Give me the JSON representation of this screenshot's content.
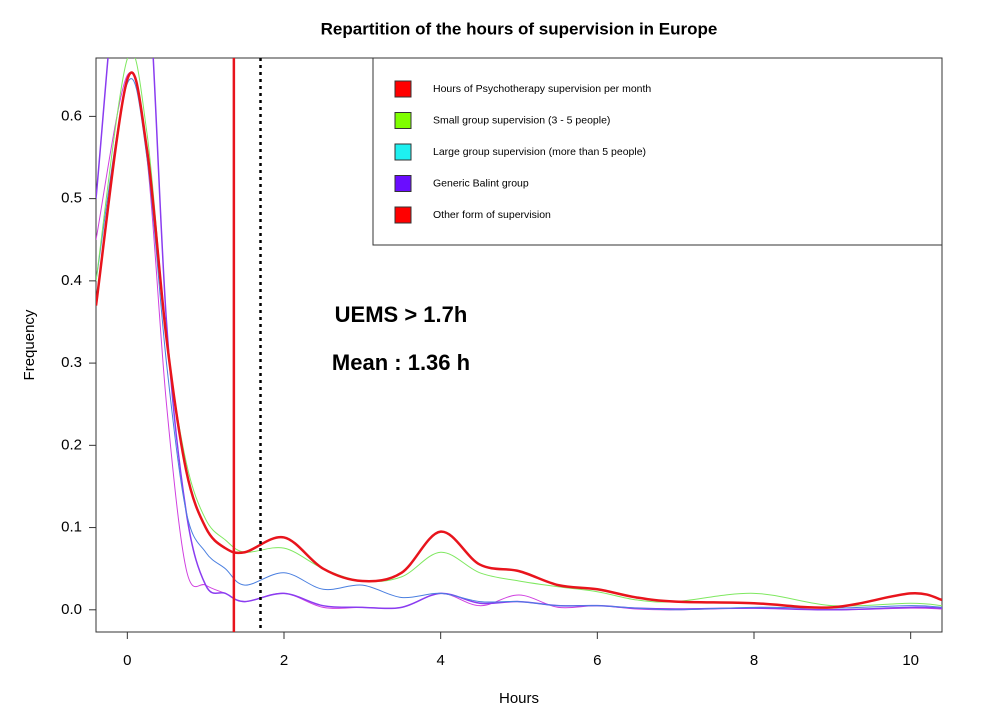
{
  "chart_data": {
    "type": "line",
    "title": "Repartition of the hours of supervision in Europe",
    "x_label": "Hours",
    "y_label": "Frequency",
    "xlim": [
      -0.4,
      10.4
    ],
    "ylim": [
      -0.027,
      0.671
    ],
    "xticks": [
      0,
      2,
      4,
      6,
      8,
      10
    ],
    "yticks": [
      {
        "value": 0,
        "label": "0.0"
      },
      0.1,
      0.2,
      0.3,
      0.4,
      0.5,
      0.6
    ],
    "legend_position": "topright",
    "x": [
      -0.4,
      0,
      0.25,
      0.5,
      0.75,
      1,
      1.25,
      1.5,
      2,
      2.5,
      3,
      3.5,
      4,
      4.5,
      5,
      5.5,
      6,
      6.5,
      7,
      8,
      9,
      10,
      10.4
    ],
    "series": [
      {
        "name": "Hours of Psychotherapy supervision per month",
        "color": "#ff0000",
        "line_color": "#e8141c",
        "line_width": 2.5,
        "values": [
          0.37,
          0.645,
          0.56,
          0.33,
          0.17,
          0.1,
          0.075,
          0.07,
          0.088,
          0.05,
          0.035,
          0.045,
          0.095,
          0.055,
          0.047,
          0.03,
          0.025,
          0.015,
          0.01,
          0.008,
          0.003,
          0.02,
          0.012
        ]
      },
      {
        "name": "Small group supervision (3 - 5 people)",
        "color": "#7fff00",
        "line_color": "#7fe860",
        "line_width": 1,
        "values": [
          0.4,
          0.67,
          0.58,
          0.33,
          0.18,
          0.11,
          0.085,
          0.07,
          0.075,
          0.05,
          0.035,
          0.04,
          0.07,
          0.045,
          0.035,
          0.028,
          0.022,
          0.012,
          0.01,
          0.02,
          0.005,
          0.008,
          0.005
        ]
      },
      {
        "name": "Large group supervision (more than 5 people)",
        "color": "#1ef0f0",
        "line_color": "#4a7fe0",
        "line_width": 1,
        "values": [
          0.4,
          0.64,
          0.55,
          0.3,
          0.12,
          0.07,
          0.05,
          0.03,
          0.045,
          0.025,
          0.03,
          0.015,
          0.02,
          0.01,
          0.01,
          0.005,
          0.005,
          0.002,
          0,
          0.003,
          0.002,
          0.005,
          0.003
        ]
      },
      {
        "name": "Generic Balint group",
        "color": "#6a0dff",
        "line_color": "#8a3cf0",
        "line_width": 1.5,
        "values": [
          0.5,
          0.9,
          0.8,
          0.35,
          0.12,
          0.03,
          0.02,
          0.01,
          0.02,
          0.005,
          0.003,
          0.003,
          0.02,
          0.008,
          0.01,
          0.005,
          0.005,
          0.002,
          0.001,
          0.002,
          0,
          0.003,
          0.002
        ]
      },
      {
        "name": "Other form of supervision",
        "color": "#ff0000",
        "line_color": "#d040e0",
        "line_width": 1,
        "values": [
          0.45,
          0.65,
          0.55,
          0.25,
          0.05,
          0.03,
          0.02,
          0.01,
          0.02,
          0.003,
          0.003,
          0.003,
          0.02,
          0.005,
          0.018,
          0.003,
          0.005,
          0.001,
          0,
          0.002,
          0,
          0.002,
          0.001
        ]
      }
    ],
    "vlines": [
      {
        "value": 1.36,
        "color": "#e8141c",
        "style": "solid"
      },
      {
        "value": 1.7,
        "color": "#000000",
        "style": "dotted"
      }
    ],
    "annotations": [
      {
        "text": "UEMS > 1.7h",
        "color": "#000000"
      },
      {
        "text": "Mean : 1.36 h",
        "color": "#e8141c"
      }
    ]
  }
}
